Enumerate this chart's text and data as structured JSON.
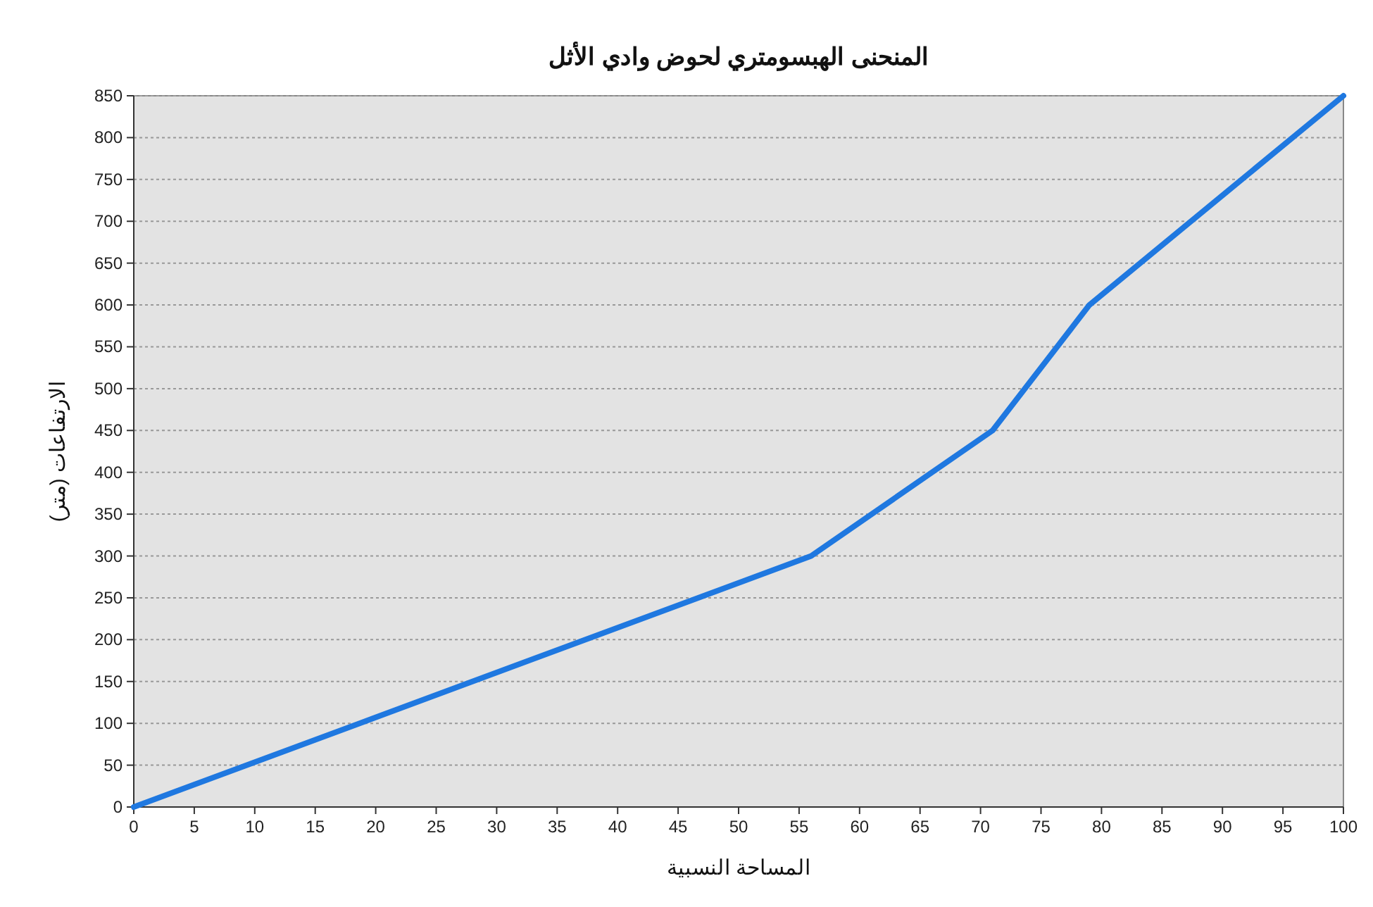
{
  "chart_data": {
    "type": "line",
    "title": "المنحنى الهبسومتري لحوض وادي الأثل",
    "xlabel": "المساحة النسبية",
    "ylabel": "الارتفاعات (متر)",
    "x": [
      0,
      56,
      71,
      79,
      100
    ],
    "series": [
      {
        "color": "#1f78e0",
        "values": [
          0,
          300,
          450,
          600,
          850
        ]
      }
    ],
    "xlim": [
      0,
      100
    ],
    "xticks": [
      0,
      5,
      10,
      15,
      20,
      25,
      30,
      35,
      40,
      45,
      50,
      55,
      60,
      65,
      70,
      75,
      80,
      85,
      90,
      95,
      100
    ],
    "ylim": [
      0,
      850
    ],
    "yticks": [
      0,
      50,
      100,
      150,
      200,
      250,
      300,
      350,
      400,
      450,
      500,
      550,
      600,
      650,
      700,
      750,
      800,
      850
    ],
    "grid": "y",
    "marker": "none",
    "line_style": "solid"
  }
}
